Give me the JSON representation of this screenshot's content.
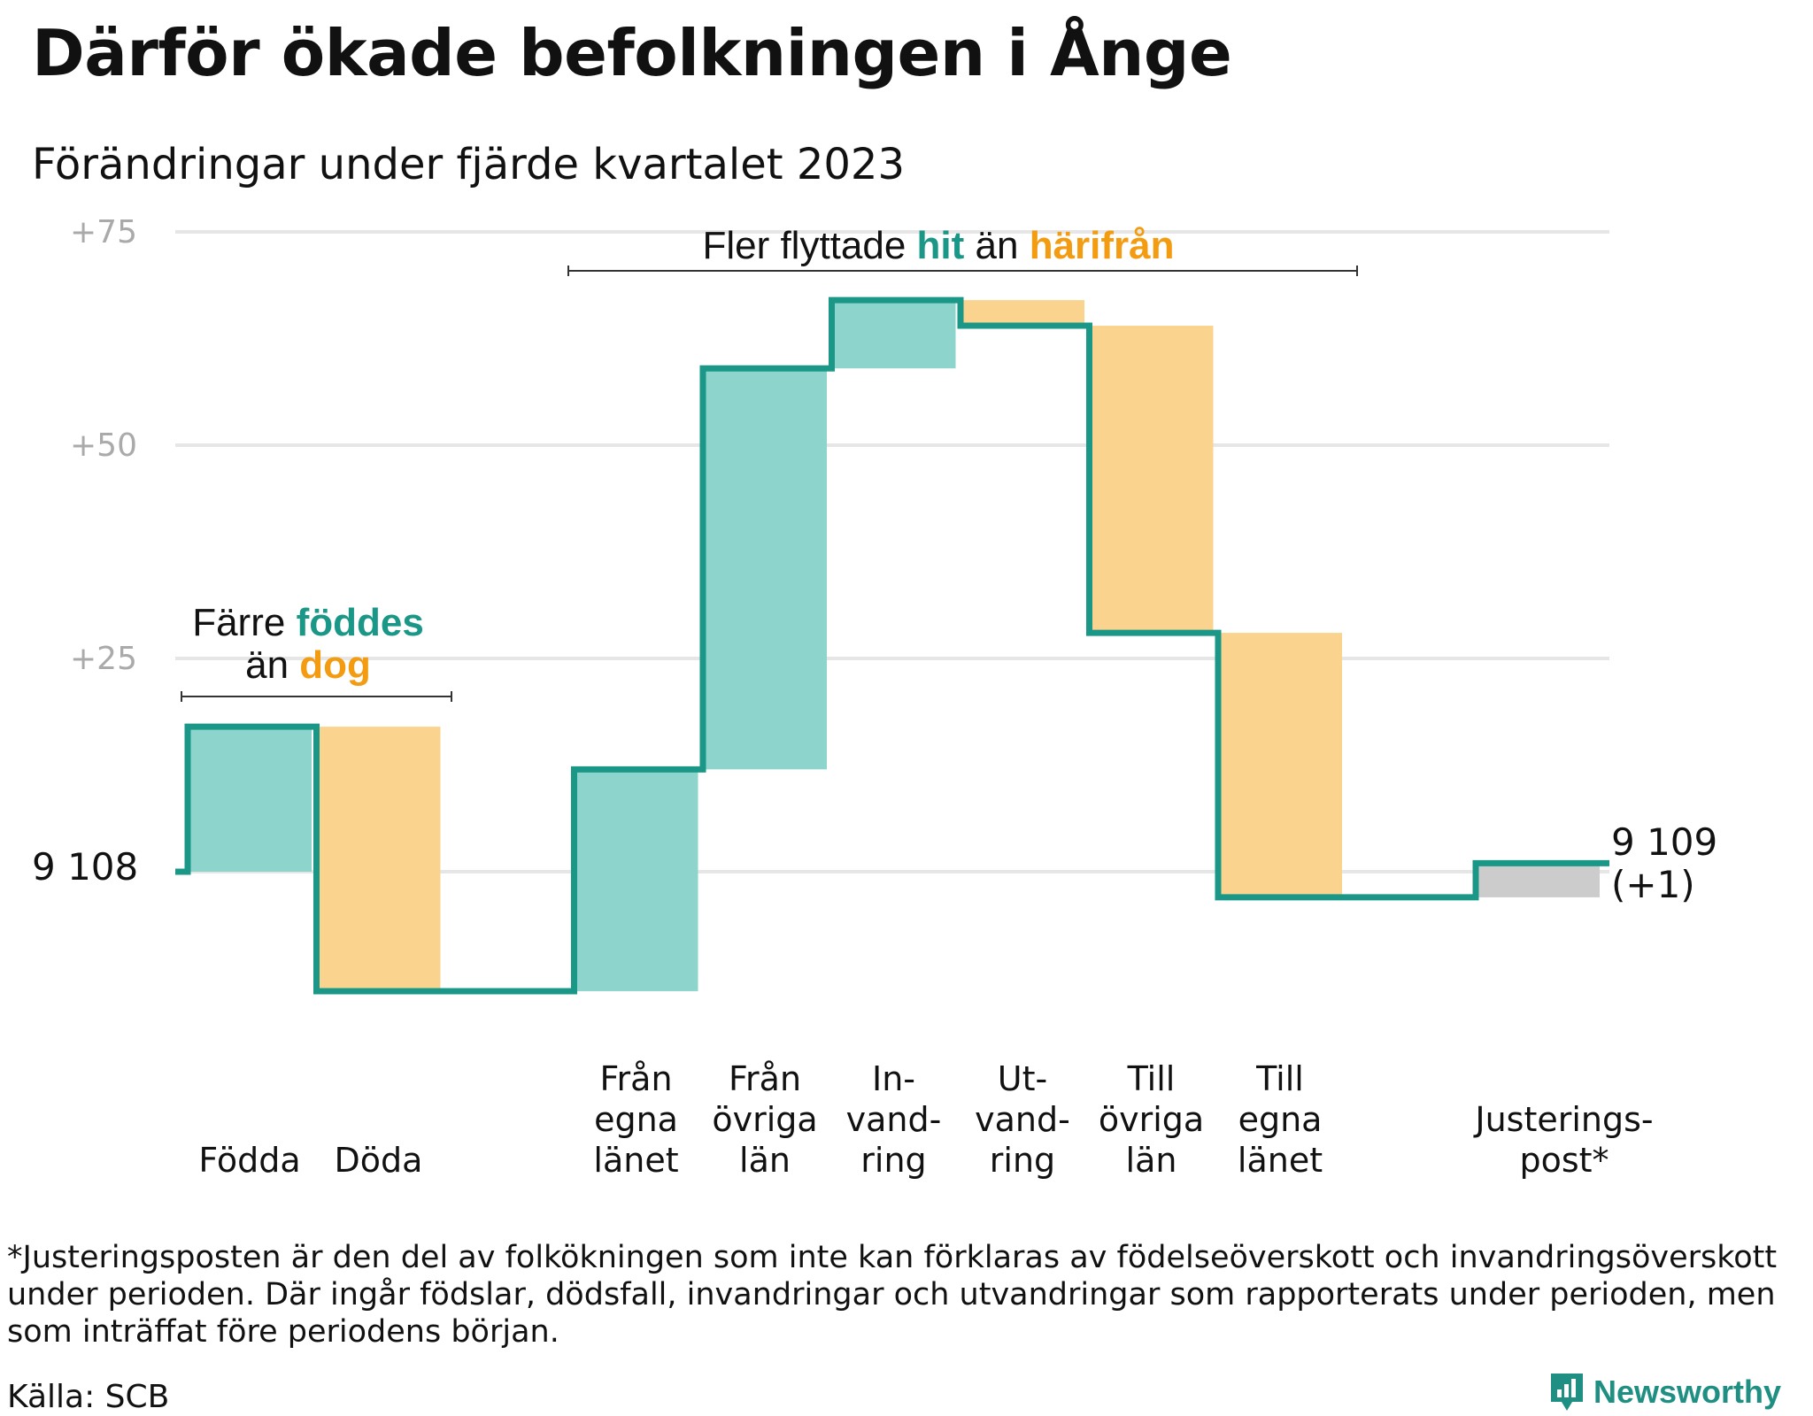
{
  "title": "Därför ökade befolkningen i Ånge",
  "subtitle": "Förändringar under fjärde kvartalet 2023",
  "colors": {
    "gain": "#8dd5cc",
    "loss": "#fad48e",
    "adjust": "#cccccc",
    "line": "#1a9787",
    "grid": "#e6e6e6",
    "teal_text": "#1a9787",
    "orange_text": "#f39c12"
  },
  "chart_data": {
    "type": "waterfall",
    "start_value": 9108,
    "start_label": "9  108",
    "end_label": [
      "9 109",
      "(+1)"
    ],
    "y_ticks": [
      {
        "value": 25,
        "label": "+25"
      },
      {
        "value": 50,
        "label": "+50"
      },
      {
        "value": 75,
        "label": "+75"
      }
    ],
    "ylim": [
      -18,
      78
    ],
    "steps": [
      {
        "label": [
          "",
          "",
          "Födda"
        ],
        "change": 17,
        "kind": "gain"
      },
      {
        "label": [
          "",
          "",
          "Döda"
        ],
        "change": -31,
        "kind": "loss"
      },
      {
        "label": [],
        "change": 0,
        "kind": "none"
      },
      {
        "label": [
          "Från",
          "egna",
          "länet"
        ],
        "change": 26,
        "kind": "gain"
      },
      {
        "label": [
          "Från",
          "övriga",
          "län"
        ],
        "change": 47,
        "kind": "gain"
      },
      {
        "label": [
          "In-",
          "vand-",
          "ring"
        ],
        "change": 8,
        "kind": "gain"
      },
      {
        "label": [
          "Ut-",
          "vand-",
          "ring"
        ],
        "change": -3,
        "kind": "loss"
      },
      {
        "label": [
          "Till",
          "övriga",
          "län"
        ],
        "change": -36,
        "kind": "loss"
      },
      {
        "label": [
          "Till",
          "egna",
          "länet"
        ],
        "change": -31,
        "kind": "loss"
      },
      {
        "label": [],
        "change": 0,
        "kind": "none"
      },
      {
        "label": [
          "",
          "Justerings-",
          "post*"
        ],
        "change": 4,
        "kind": "adjust"
      }
    ],
    "annotations": {
      "natural": {
        "line1_a": "Färre ",
        "line1_b": "föddes",
        "line2_a": "än ",
        "line2_b": "dog"
      },
      "migration": {
        "a": "Fler flyttade ",
        "b": "hit",
        "c": " än ",
        "d": "härifrån"
      }
    }
  },
  "footnote": "*Justeringsposten är den del av folkökningen som inte kan förklaras av födelseöverskott och invandringsöverskott under perioden. Där ingår födslar, dödsfall, invandringar och utvandringar som rapporterats under perioden, men som inträffat före periodens början.",
  "source": "Källa: SCB",
  "brand": {
    "name": "Newsworthy",
    "icon": "newsworthy-logo-icon"
  }
}
